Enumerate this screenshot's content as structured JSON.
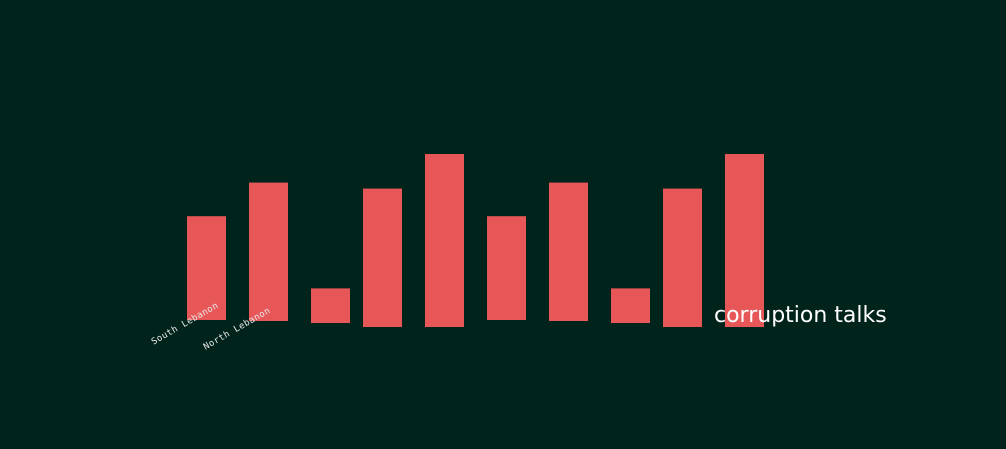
{
  "background_color": "#00231c",
  "bar_color": "#e85757",
  "chart_data": {
    "type": "bar",
    "title": "corruption talks",
    "xlabel": "",
    "ylabel": "",
    "tick_labels": [
      "South Lebanon",
      "North Lebanon"
    ],
    "values": [
      6,
      8,
      2,
      8,
      10,
      6,
      8,
      2,
      8,
      10
    ],
    "ylim": [
      0,
      10
    ],
    "grid": false,
    "legend": "none"
  }
}
